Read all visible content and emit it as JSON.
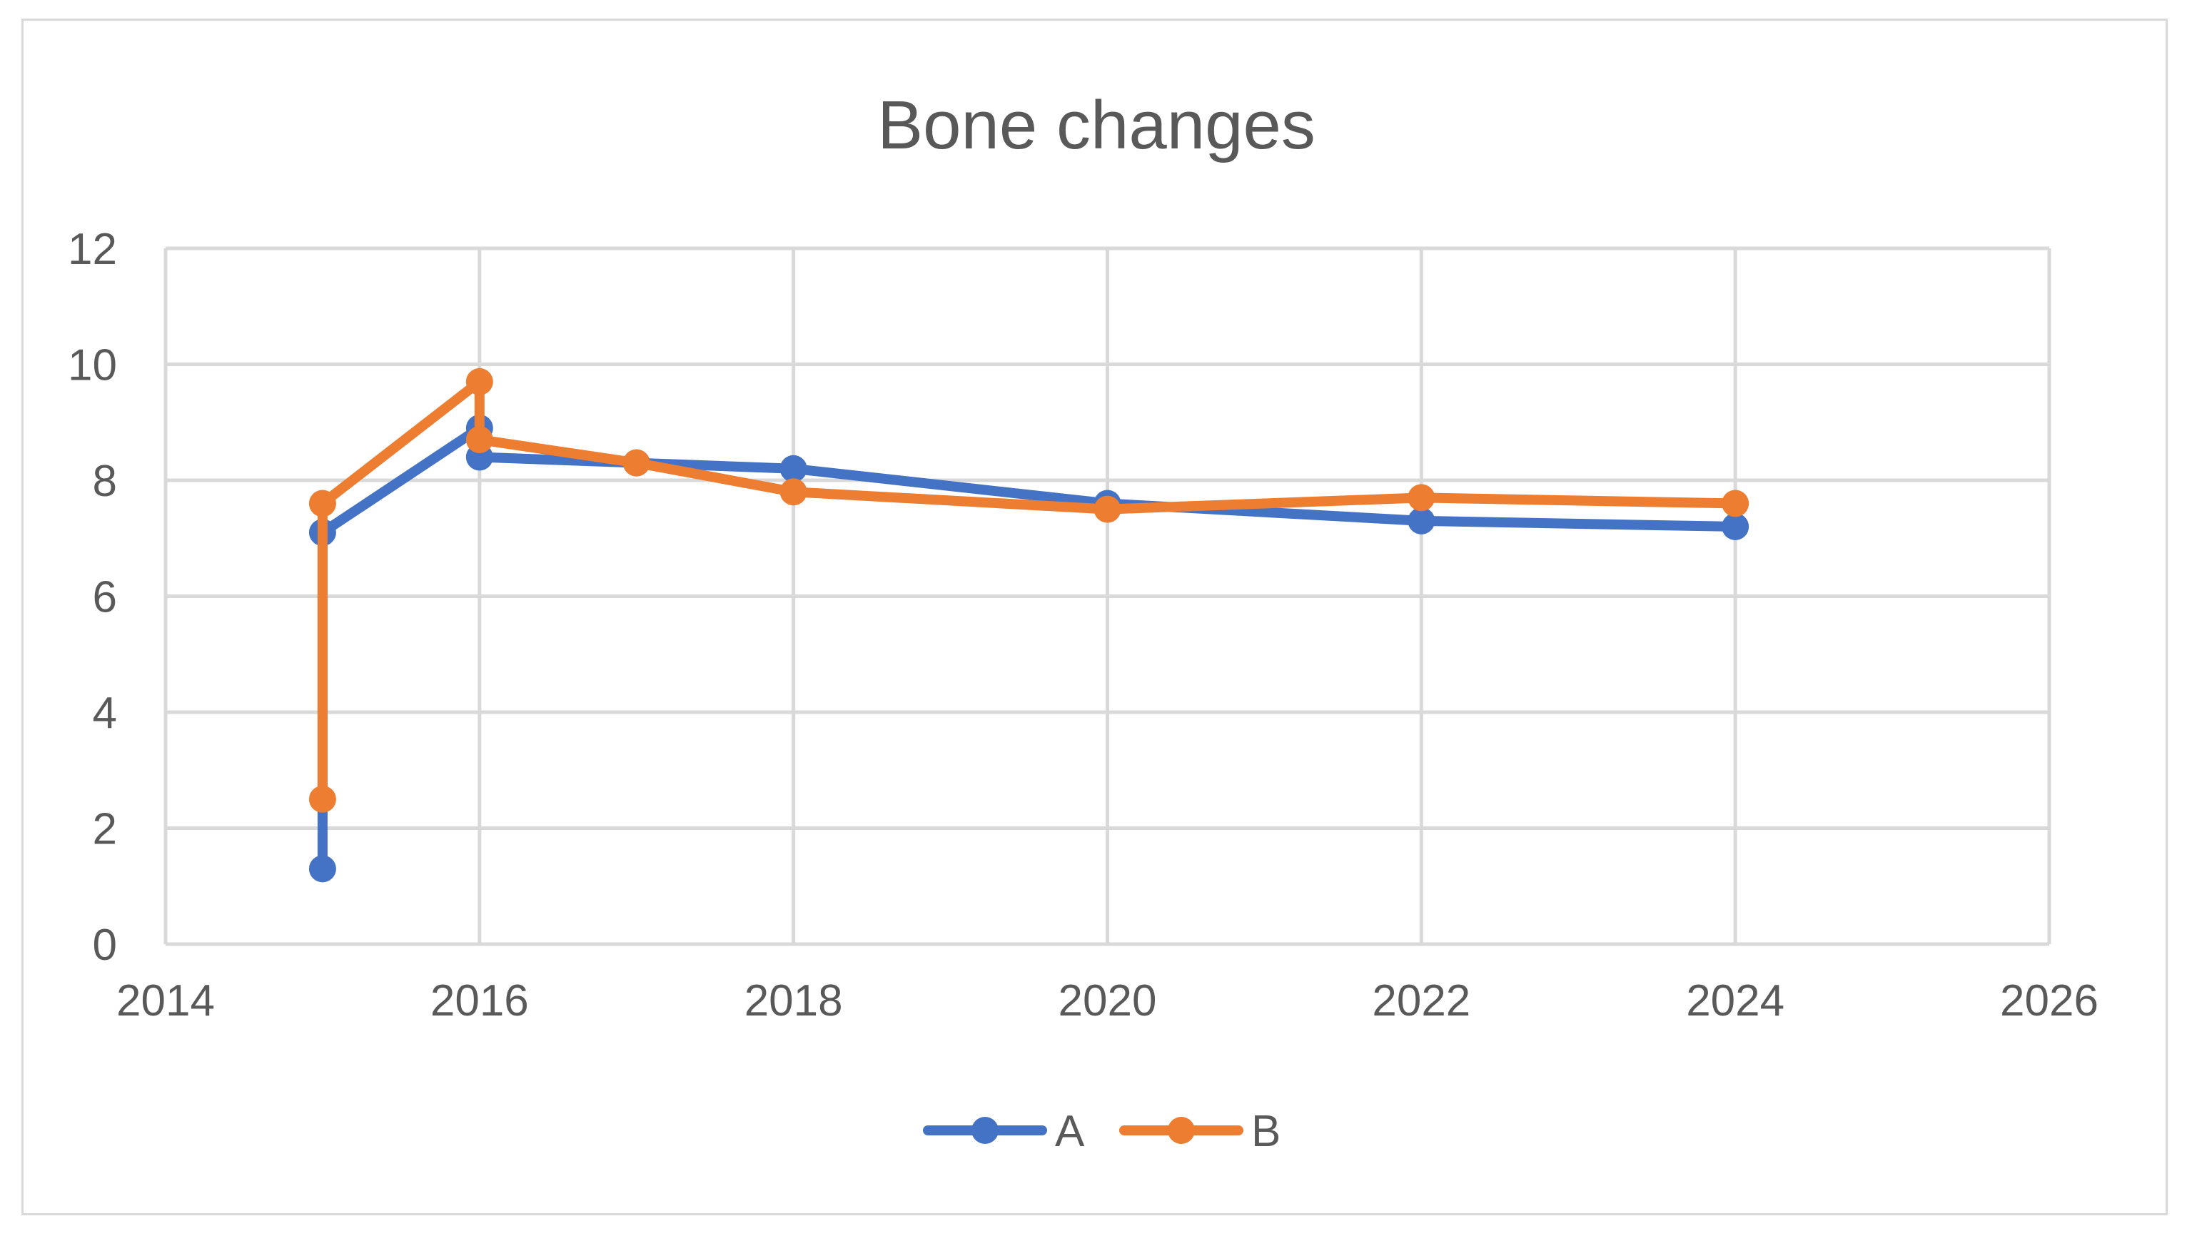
{
  "chart_data": {
    "type": "scatter",
    "title": "Bone changes",
    "xlabel": "",
    "ylabel": "",
    "xlim": [
      2014,
      2026
    ],
    "ylim": [
      0,
      12
    ],
    "x_ticks": [
      2014,
      2016,
      2018,
      2020,
      2022,
      2024,
      2026
    ],
    "y_ticks": [
      0,
      2,
      4,
      6,
      8,
      10,
      12
    ],
    "grid": true,
    "legend": "bottom",
    "series": [
      {
        "name": "A",
        "color": "#4472C4",
        "points": [
          {
            "x": 2015,
            "y": 1.3
          },
          {
            "x": 2015,
            "y": 7.1
          },
          {
            "x": 2016,
            "y": 8.9
          },
          {
            "x": 2016,
            "y": 8.4
          },
          {
            "x": 2017,
            "y": 8.3
          },
          {
            "x": 2018,
            "y": 8.2
          },
          {
            "x": 2020,
            "y": 7.6
          },
          {
            "x": 2022,
            "y": 7.3
          },
          {
            "x": 2024,
            "y": 7.2
          }
        ]
      },
      {
        "name": "B",
        "color": "#ED7D31",
        "points": [
          {
            "x": 2015,
            "y": 2.5
          },
          {
            "x": 2015,
            "y": 7.6
          },
          {
            "x": 2016,
            "y": 9.7
          },
          {
            "x": 2016,
            "y": 8.7
          },
          {
            "x": 2017,
            "y": 8.3
          },
          {
            "x": 2018,
            "y": 7.8
          },
          {
            "x": 2020,
            "y": 7.5
          },
          {
            "x": 2022,
            "y": 7.7
          },
          {
            "x": 2024,
            "y": 7.6
          }
        ]
      }
    ]
  }
}
